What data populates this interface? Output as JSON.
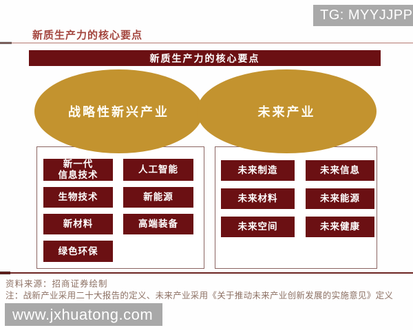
{
  "badge": {
    "label": "TG: MYYJJPP"
  },
  "header": {
    "title": "新质生产力的核心要点"
  },
  "banner": {
    "title": "新质生产力的核心要点"
  },
  "diagram": {
    "strategic": {
      "ellipse_label": "战略性新兴产业",
      "boxes": [
        "新一代\n信息技术",
        "人工智能",
        "生物技术",
        "新能源",
        "新材料",
        "高端装备",
        "绿色环保"
      ]
    },
    "future": {
      "ellipse_label": "未来产业",
      "boxes": [
        "未来制造",
        "未来信息",
        "未来材料",
        "未来能源",
        "未来空间",
        "未来健康"
      ]
    }
  },
  "footer": {
    "source": "资料来源：招商证券绘制",
    "note": "注：战新产业采用二十大报告的定义、未来产业采用《关于推动未来产业创新发展的实施意见》定义",
    "watermark": "www.jxhuatong.com"
  },
  "colors": {
    "maroon": "#6b1013",
    "gold": "#c3932f",
    "heading_red": "#a3453e",
    "badge_gray": "#a9a9a9",
    "watermark_gray": "#a8a8a8",
    "note_gray": "#8d7164"
  }
}
